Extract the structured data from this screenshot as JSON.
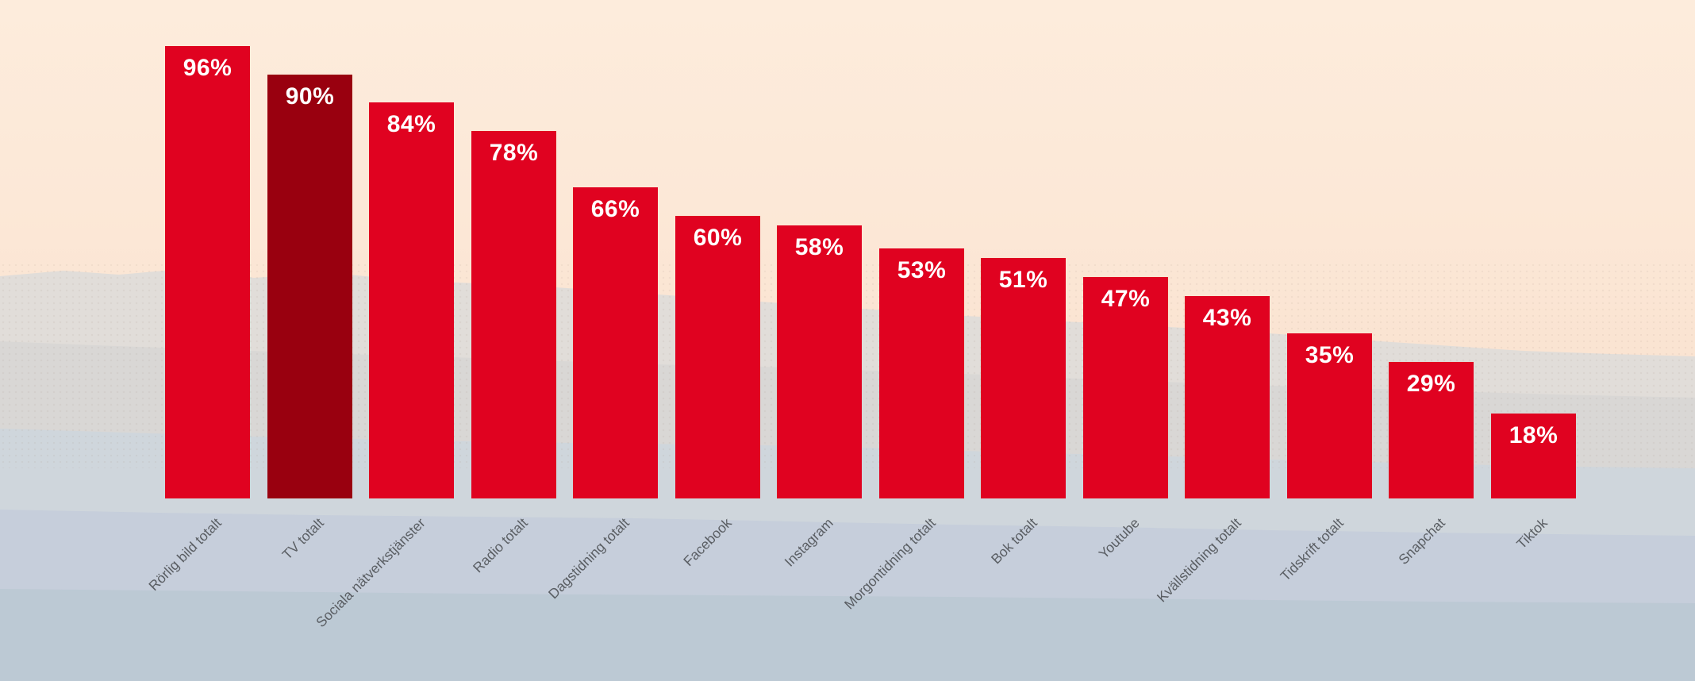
{
  "chart_data": {
    "type": "bar",
    "title": "",
    "xlabel": "",
    "ylabel": "",
    "categories": [
      "Rörlig bild totalt",
      "TV totalt",
      "Sociala nätverkstjänster",
      "Radio totalt",
      "Dagstidning totalt",
      "Facebook",
      "Instagram",
      "Morgontidning totalt",
      "Bok totalt",
      "Youtube",
      "Kvällstidning totalt",
      "Tidskrift totalt",
      "Snapchat",
      "Tiktok"
    ],
    "values": [
      96,
      90,
      84,
      78,
      66,
      60,
      58,
      53,
      51,
      47,
      43,
      35,
      29,
      18
    ],
    "value_labels": [
      "96%",
      "90%",
      "84%",
      "78%",
      "66%",
      "60%",
      "58%",
      "53%",
      "51%",
      "47%",
      "43%",
      "35%",
      "29%",
      "18%"
    ],
    "highlight_index": 1,
    "ylim": [
      0,
      100
    ],
    "grid": false,
    "legend": false,
    "colors": {
      "bar": "#e00220",
      "highlight_bar": "#99000f",
      "value_text": "#ffffff",
      "category_text": "#5a5e63",
      "sky_top": "#fdecdc",
      "sky_bottom": "#f8e0cf",
      "ridge_far": "#e1ddd9",
      "ridge_mid": "#d9d7d5",
      "ridge_haze": "#cfd6dc",
      "ridge_blue": "#c5ceda",
      "ridge_foot": "#bcc8d4"
    }
  }
}
